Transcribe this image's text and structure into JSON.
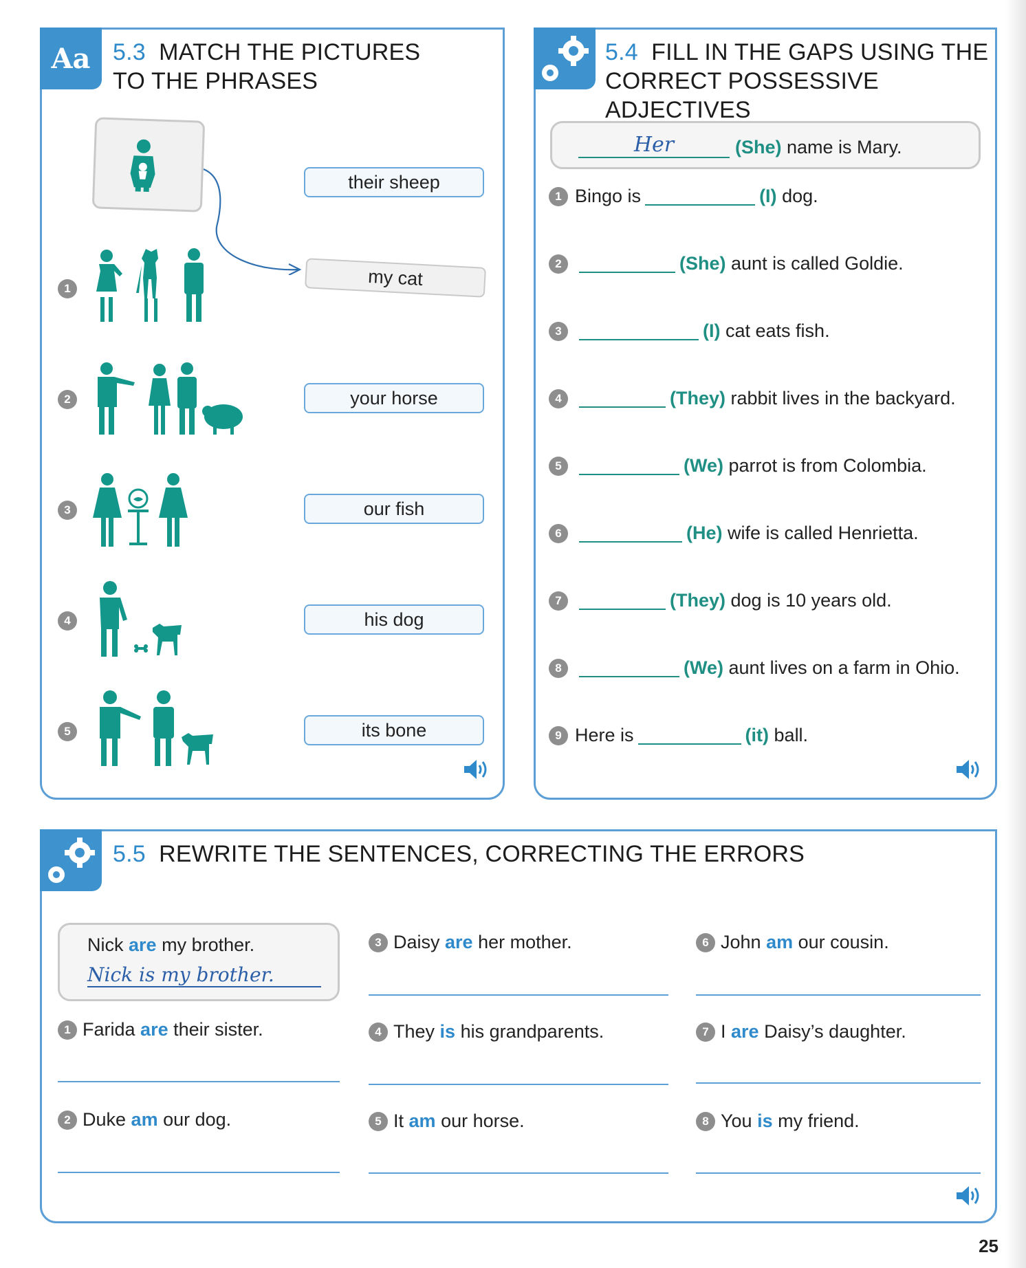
{
  "section_53": {
    "badge": "Aa",
    "number": "5.3",
    "title_line1": "MATCH THE PICTURES",
    "title_line2": "TO THE PHRASES",
    "phrases": [
      "their sheep",
      "my cat",
      "your horse",
      "our fish",
      "his dog",
      "its bone"
    ],
    "numbers": [
      "1",
      "2",
      "3",
      "4",
      "5"
    ]
  },
  "section_54": {
    "number": "5.4",
    "title_line1": "FILL IN THE GAPS USING THE",
    "title_line2": "CORRECT POSSESSIVE ADJECTIVES",
    "example": {
      "answer": "Her",
      "cue": "(She)",
      "rest": "name is Mary."
    },
    "items": [
      {
        "num": "1",
        "pre": "Bingo is",
        "cue": "(I)",
        "rest": "dog."
      },
      {
        "num": "2",
        "pre": "",
        "cue": "(She)",
        "rest": "aunt is called Goldie."
      },
      {
        "num": "3",
        "pre": "",
        "cue": "(I)",
        "rest": "cat eats fish."
      },
      {
        "num": "4",
        "pre": "",
        "cue": "(They)",
        "rest": "rabbit lives in the backyard."
      },
      {
        "num": "5",
        "pre": "",
        "cue": "(We)",
        "rest": "parrot is from Colombia."
      },
      {
        "num": "6",
        "pre": "",
        "cue": "(He)",
        "rest": "wife is called Henrietta."
      },
      {
        "num": "7",
        "pre": "",
        "cue": "(They)",
        "rest": "dog is 10 years old."
      },
      {
        "num": "8",
        "pre": "",
        "cue": "(We)",
        "rest": "aunt lives on a farm in Ohio."
      },
      {
        "num": "9",
        "pre": "Here is",
        "cue": "(it)",
        "rest": "ball."
      }
    ]
  },
  "section_55": {
    "number": "5.5",
    "title": "REWRITE THE SENTENCES, CORRECTING THE ERRORS",
    "example": {
      "pre": "Nick",
      "verb": "are",
      "post": "my brother.",
      "answer": "Nick is my brother."
    },
    "items": [
      {
        "num": "1",
        "pre": "Farida",
        "verb": "are",
        "post": "their sister."
      },
      {
        "num": "2",
        "pre": "Duke",
        "verb": "am",
        "post": "our dog."
      },
      {
        "num": "3",
        "pre": "Daisy",
        "verb": "are",
        "post": "her mother."
      },
      {
        "num": "4",
        "pre": "They",
        "verb": "is",
        "post": "his grandparents."
      },
      {
        "num": "5",
        "pre": "It",
        "verb": "am",
        "post": "our horse."
      },
      {
        "num": "6",
        "pre": "John",
        "verb": "am",
        "post": "our cousin."
      },
      {
        "num": "7",
        "pre": "I",
        "verb": "are",
        "post": "Daisy’s daughter."
      },
      {
        "num": "8",
        "pre": "You",
        "verb": "is",
        "post": "my friend."
      }
    ]
  },
  "page_number": "25",
  "colors": {
    "accent_blue": "#3e93cf",
    "teal": "#1f8f84",
    "figure_teal": "#12978a"
  }
}
